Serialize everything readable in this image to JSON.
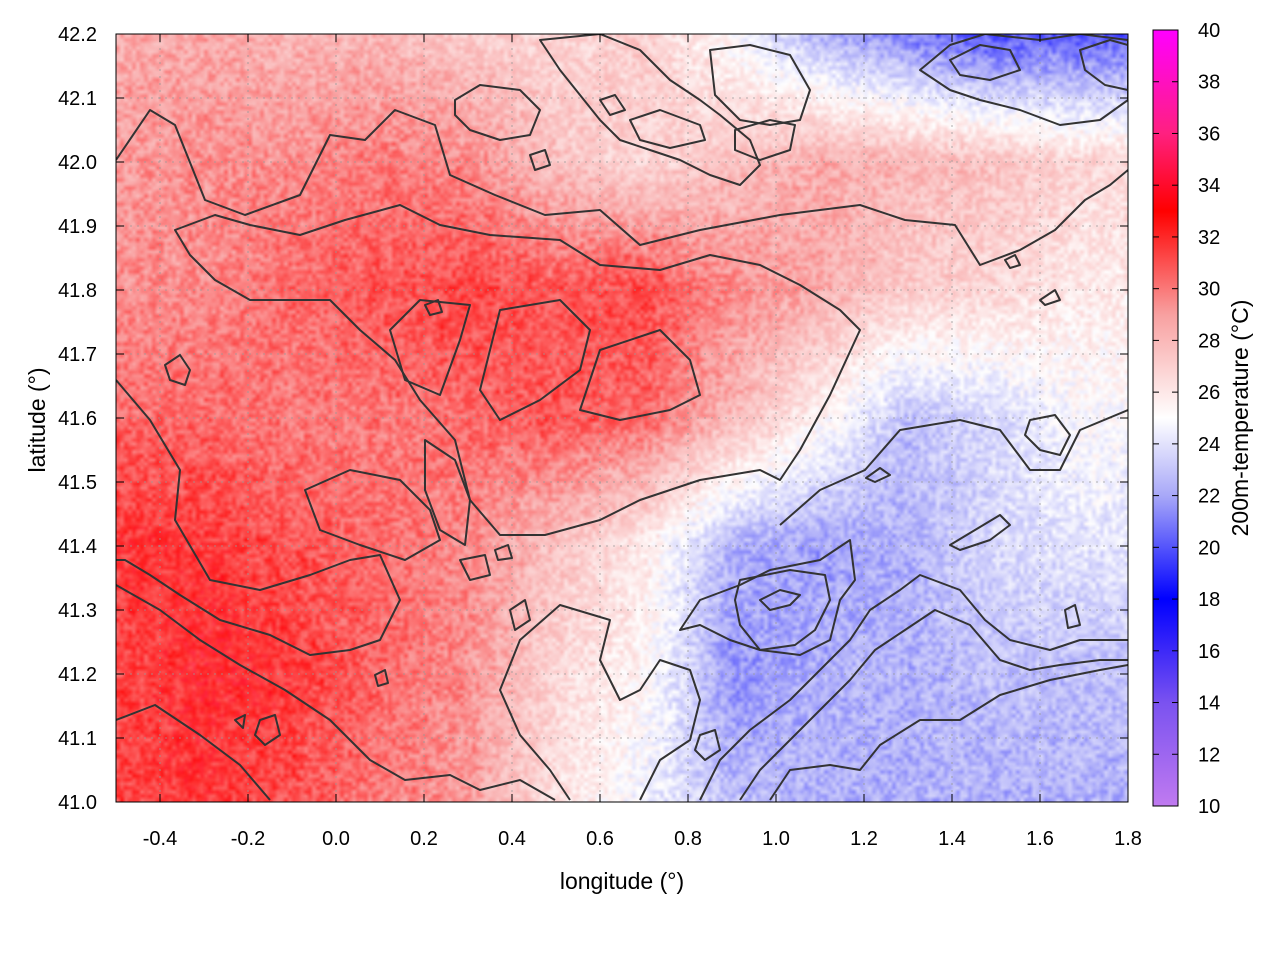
{
  "chart_data": {
    "type": "heatmap",
    "title": "",
    "xlabel": "longitude (°)",
    "ylabel": "latitude (°)",
    "colorbar_label": "200m-temperature (°C)",
    "xlim": [
      -0.5,
      1.8
    ],
    "ylim": [
      41.0,
      42.2
    ],
    "x_ticks": [
      "-0.4",
      "-0.2",
      "0.0",
      "0.2",
      "0.4",
      "0.6",
      "0.8",
      "1.0",
      "1.2",
      "1.4",
      "1.6",
      "1.8"
    ],
    "y_ticks": [
      "41.0",
      "41.1",
      "41.2",
      "41.3",
      "41.4",
      "41.5",
      "41.6",
      "41.7",
      "41.8",
      "41.9",
      "42.0",
      "42.1",
      "42.2"
    ],
    "colorbar_range": [
      10,
      40
    ],
    "colorbar_ticks": [
      "10",
      "12",
      "14",
      "16",
      "18",
      "20",
      "22",
      "24",
      "26",
      "28",
      "30",
      "32",
      "34",
      "36",
      "38",
      "40"
    ],
    "colormap": [
      {
        "value": 10,
        "color": "#c07af0"
      },
      {
        "value": 14,
        "color": "#7a52f0"
      },
      {
        "value": 18,
        "color": "#0000ff"
      },
      {
        "value": 22,
        "color": "#a8a8f8"
      },
      {
        "value": 25,
        "color": "#ffffff"
      },
      {
        "value": 29,
        "color": "#f8a0a0"
      },
      {
        "value": 33,
        "color": "#ff0000"
      },
      {
        "value": 36,
        "color": "#ff2080"
      },
      {
        "value": 40,
        "color": "#ff00ff"
      }
    ],
    "contour_color": "#333333",
    "grid": true,
    "field_estimate": {
      "x": [
        -0.5,
        -0.3,
        -0.1,
        0.1,
        0.3,
        0.5,
        0.7,
        0.9,
        1.1,
        1.3,
        1.5,
        1.7,
        1.8
      ],
      "y": [
        41.0,
        41.2,
        41.4,
        41.6,
        41.8,
        42.0,
        42.2
      ],
      "values": [
        [
          32.0,
          32.5,
          31.5,
          30.5,
          29.5,
          26.5,
          24.5,
          22.5,
          22.0,
          22.0,
          22.0,
          22.0,
          22.0
        ],
        [
          32.0,
          33.0,
          32.5,
          31.0,
          30.0,
          27.0,
          25.5,
          21.0,
          22.0,
          22.0,
          22.5,
          22.5,
          22.5
        ],
        [
          32.5,
          32.5,
          31.5,
          31.0,
          30.0,
          28.0,
          26.0,
          22.0,
          21.5,
          22.0,
          23.5,
          24.0,
          24.0
        ],
        [
          31.0,
          31.0,
          30.5,
          30.5,
          31.0,
          31.5,
          31.0,
          28.5,
          25.5,
          22.5,
          23.5,
          25.0,
          25.0
        ],
        [
          30.0,
          30.0,
          31.0,
          31.5,
          32.0,
          31.5,
          32.0,
          30.0,
          29.0,
          27.5,
          27.0,
          26.0,
          26.0
        ],
        [
          29.5,
          30.0,
          30.0,
          30.5,
          30.0,
          28.0,
          27.0,
          28.0,
          29.0,
          28.5,
          28.0,
          27.0,
          27.0
        ],
        [
          29.0,
          29.0,
          28.5,
          28.5,
          27.5,
          27.0,
          27.5,
          25.0,
          22.0,
          20.5,
          19.0,
          19.5,
          19.5
        ]
      ]
    }
  }
}
